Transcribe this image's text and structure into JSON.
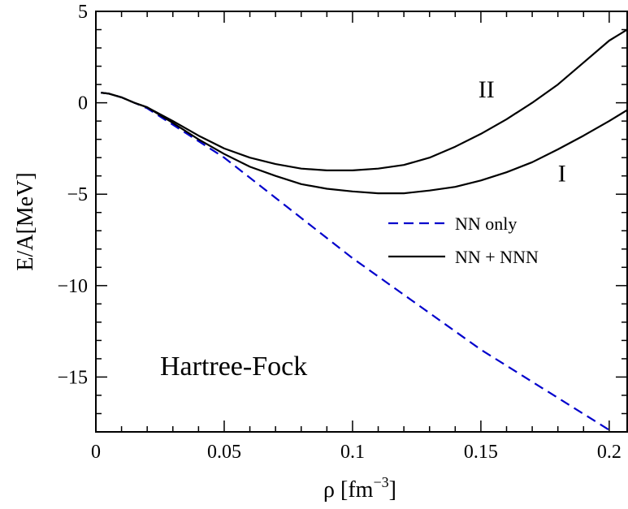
{
  "chart_data": {
    "type": "line",
    "title": "",
    "xlabel": "ρ [fm",
    "xlabel_sup": "−3",
    "xlabel_tail": "]",
    "ylabel": "E/A[MeV]",
    "xlim": [
      0,
      0.207
    ],
    "ylim": [
      -18,
      5
    ],
    "x_major_ticks": [
      0,
      0.05,
      0.1,
      0.15,
      0.2
    ],
    "x_tick_labels": [
      "0",
      "0.05",
      "0.1",
      "0.15",
      "0.2"
    ],
    "x_minor_step": 0.01,
    "y_major_ticks": [
      5,
      0,
      -5,
      -10,
      -15
    ],
    "y_tick_labels": [
      "5",
      "0",
      "−5",
      "−10",
      "−15"
    ],
    "y_minor_step": 1,
    "grid": false,
    "legend_position": "center-right",
    "series": [
      {
        "name": "NN only",
        "style": "dashed",
        "color": "#0000cc",
        "x": [
          0.002,
          0.005,
          0.01,
          0.015,
          0.02,
          0.05,
          0.1,
          0.15,
          0.2,
          0.207
        ],
        "y": [
          0.55,
          0.5,
          0.3,
          0.0,
          -0.3,
          -3.0,
          -8.5,
          -13.5,
          -17.9,
          -18.6
        ]
      },
      {
        "name": "NN + NNN",
        "style": "solid",
        "color": "#000000",
        "label": "II",
        "x": [
          0.002,
          0.005,
          0.01,
          0.015,
          0.02,
          0.03,
          0.04,
          0.05,
          0.06,
          0.07,
          0.08,
          0.09,
          0.1,
          0.11,
          0.12,
          0.13,
          0.14,
          0.15,
          0.16,
          0.17,
          0.18,
          0.19,
          0.2,
          0.207
        ],
        "y": [
          0.55,
          0.5,
          0.3,
          0.0,
          -0.25,
          -1.0,
          -1.8,
          -2.5,
          -3.0,
          -3.35,
          -3.6,
          -3.7,
          -3.7,
          -3.6,
          -3.4,
          -3.0,
          -2.4,
          -1.7,
          -0.9,
          0.0,
          1.0,
          2.2,
          3.4,
          4.0
        ]
      },
      {
        "name": "NN + NNN",
        "style": "solid",
        "color": "#000000",
        "label": "I",
        "x": [
          0.002,
          0.005,
          0.01,
          0.015,
          0.02,
          0.03,
          0.04,
          0.05,
          0.06,
          0.07,
          0.08,
          0.09,
          0.1,
          0.11,
          0.12,
          0.13,
          0.14,
          0.15,
          0.16,
          0.17,
          0.18,
          0.19,
          0.2,
          0.207
        ],
        "y": [
          0.55,
          0.5,
          0.3,
          0.0,
          -0.25,
          -1.1,
          -2.0,
          -2.8,
          -3.5,
          -4.0,
          -4.45,
          -4.7,
          -4.85,
          -4.95,
          -4.95,
          -4.8,
          -4.6,
          -4.25,
          -3.8,
          -3.25,
          -2.55,
          -1.8,
          -1.0,
          -0.4
        ]
      }
    ],
    "legend": [
      {
        "label": "NN only",
        "style": "dashed",
        "color": "#0000cc"
      },
      {
        "label": "NN + NNN",
        "style": "solid",
        "color": "#000000"
      }
    ],
    "annotations": [
      {
        "text": "Hartree-Fock",
        "x": 0.025,
        "y": -14.9
      },
      {
        "text": "II",
        "x": 0.149,
        "y": 0.3,
        "kind": "curve-label"
      },
      {
        "text": "I",
        "x": 0.18,
        "y": -4.3,
        "kind": "curve-label"
      }
    ]
  }
}
